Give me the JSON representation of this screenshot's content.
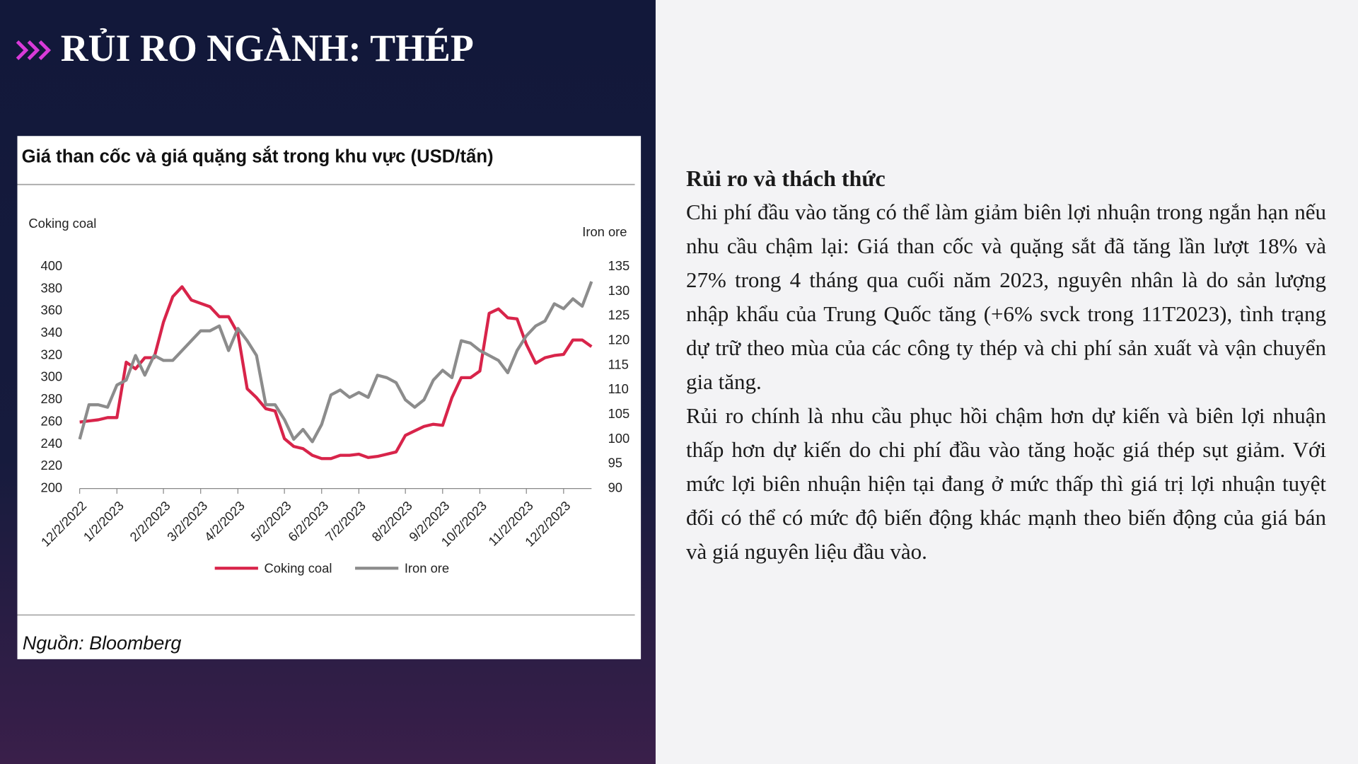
{
  "slide": {
    "title": "RỦI RO NGÀNH: THÉP"
  },
  "chart_data": {
    "type": "line",
    "title": "Giá than cốc và giá quặng sắt trong khu vực (USD/tấn)",
    "ylabel": "Coking coal",
    "y2label": "Iron ore",
    "source": "Nguồn: Bloomberg",
    "categories": [
      "12/2/2022",
      null,
      null,
      null,
      "1/2/2023",
      null,
      null,
      null,
      null,
      "2/2/2023",
      null,
      null,
      null,
      "3/2/2023",
      null,
      null,
      null,
      "4/2/2023",
      null,
      null,
      null,
      null,
      "5/2/2023",
      null,
      null,
      null,
      "6/2/2023",
      null,
      null,
      null,
      "7/2/2023",
      null,
      null,
      null,
      null,
      "8/2/2023",
      null,
      null,
      null,
      "9/2/2023",
      null,
      null,
      null,
      "10/2/2023",
      null,
      null,
      null,
      null,
      "11/2/2023",
      null,
      null,
      null,
      "12/2/2023",
      null,
      null,
      null
    ],
    "ylim": [
      200,
      400
    ],
    "yticks": [
      200,
      220,
      240,
      260,
      280,
      300,
      320,
      340,
      360,
      380,
      400
    ],
    "y2lim": [
      90,
      135
    ],
    "y2ticks": [
      90,
      95,
      100,
      105,
      110,
      115,
      120,
      125,
      130,
      135
    ],
    "legend": "bottom",
    "series": [
      {
        "name": "Coking coal",
        "color": "#d8244a",
        "values": [
          260,
          261,
          262,
          264,
          264,
          314,
          308,
          318,
          318,
          350,
          373,
          382,
          370,
          367,
          364,
          355,
          355,
          340,
          290,
          282,
          272,
          270,
          245,
          238,
          236,
          230,
          227,
          227,
          230,
          230,
          231,
          228,
          229,
          231,
          233,
          248,
          252,
          256,
          258,
          257,
          282,
          300,
          300,
          306,
          358,
          362,
          354,
          353,
          330,
          313,
          318,
          320,
          321,
          334,
          334,
          328
        ]
      },
      {
        "name": "Iron ore",
        "color": "#8c8c8c",
        "axis": "y2",
        "values": [
          100,
          107,
          107,
          106.5,
          111,
          112,
          117,
          113,
          117,
          116,
          116,
          118,
          120,
          122,
          122,
          123,
          118,
          122.5,
          120,
          117,
          107,
          107,
          104,
          100,
          102,
          99.5,
          103,
          109,
          110,
          108.5,
          109.5,
          108.5,
          113,
          112.5,
          111.5,
          108,
          106.5,
          108,
          112,
          114,
          112.5,
          120,
          119.5,
          118,
          117,
          116,
          113.5,
          118,
          121,
          123,
          124,
          127.5,
          126.5,
          128.5,
          127,
          132
        ]
      }
    ]
  },
  "text": {
    "heading": "Rủi ro và thách thức",
    "paragraphs": [
      "Chi phí đầu vào tăng có thể làm giảm biên lợi nhuận trong ngắn hạn nếu nhu cầu chậm lại: Giá than cốc và quặng sắt đã tăng lần lượt 18% và 27% trong 4 tháng qua cuối năm 2023, nguyên nhân là do sản lượng nhập khẩu của Trung Quốc tăng (+6% svck trong 11T2023), tình trạng dự trữ theo mùa của các công ty thép và chi phí sản xuất và vận chuyển gia tăng.",
      "Rủi ro chính là nhu cầu phục hồi chậm hơn dự kiến và biên lợi nhuận thấp hơn dự kiến do chi phí đầu vào tăng hoặc giá thép sụt giảm. Với mức lợi biên nhuận hiện tại đang ở mức thấp thì giá trị lợi nhuận tuyệt đối có thể có mức độ biến động khác mạnh theo biến động của giá bán và giá nguyên liệu đầu vào."
    ]
  }
}
